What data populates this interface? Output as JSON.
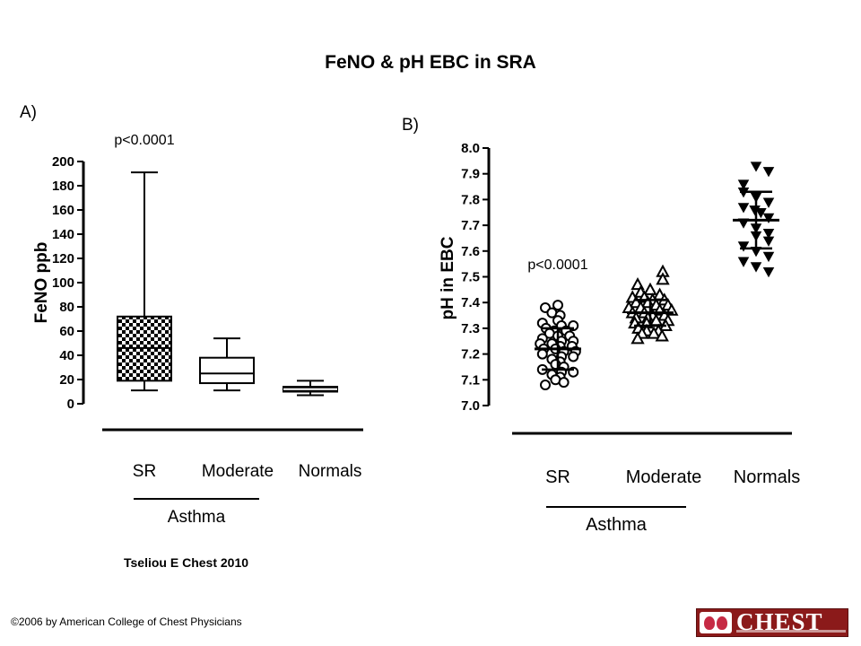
{
  "page": {
    "title": "FeNO & pH EBC in SRA",
    "citation": "Tseliou E Chest 2010",
    "copyright": "©2006 by American College of Chest Physicians",
    "logo_text": "CHEST"
  },
  "colors": {
    "logo_bg": "#8b1a1a",
    "ink": "#000000"
  },
  "chart_data": [
    {
      "panel": "A)",
      "type": "boxplot",
      "ylabel": "FeNO ppb",
      "ylim": [
        0,
        200
      ],
      "yticks": [
        "0",
        "20",
        "40",
        "60",
        "80",
        "100",
        "120",
        "140",
        "160",
        "180",
        "200"
      ],
      "categories": [
        "SR",
        "Moderate",
        "Normals"
      ],
      "group_label": "Asthma",
      "annotation": "p<0.0001",
      "boxes": [
        {
          "category": "SR",
          "min": 11,
          "q1": 19,
          "median": 46,
          "q3": 72,
          "max": 191,
          "fill": "checkered"
        },
        {
          "category": "Moderate",
          "min": 11,
          "q1": 17,
          "median": 25,
          "q3": 38,
          "max": 54,
          "fill": "none"
        },
        {
          "category": "Normals",
          "min": 7,
          "q1": 10,
          "median": 12,
          "q3": 14,
          "max": 19,
          "fill": "black"
        }
      ]
    },
    {
      "panel": "B)",
      "type": "scatter",
      "ylabel": "pH in EBC",
      "ylim": [
        7.0,
        8.0
      ],
      "yticks": [
        "7.0",
        "7.1",
        "7.2",
        "7.3",
        "7.4",
        "7.5",
        "7.6",
        "7.7",
        "7.8",
        "7.9",
        "8.0"
      ],
      "categories": [
        "SR",
        "Moderate",
        "Normals"
      ],
      "group_label": "Asthma",
      "annotation": "p<0.0001",
      "series": [
        {
          "category": "SR",
          "marker": "open-circle",
          "mean": 7.22,
          "sd_low": 7.14,
          "sd_high": 7.3,
          "values": [
            7.39,
            7.38,
            7.36,
            7.35,
            7.33,
            7.32,
            7.31,
            7.31,
            7.3,
            7.29,
            7.29,
            7.28,
            7.27,
            7.27,
            7.26,
            7.25,
            7.25,
            7.24,
            7.24,
            7.23,
            7.23,
            7.22,
            7.22,
            7.21,
            7.21,
            7.2,
            7.19,
            7.19,
            7.18,
            7.17,
            7.16,
            7.15,
            7.14,
            7.13,
            7.13,
            7.12,
            7.11,
            7.1,
            7.09,
            7.08
          ]
        },
        {
          "category": "Moderate",
          "marker": "open-triangle",
          "mean": 7.36,
          "sd_low": 7.31,
          "sd_high": 7.41,
          "values": [
            7.52,
            7.49,
            7.47,
            7.45,
            7.44,
            7.43,
            7.42,
            7.42,
            7.41,
            7.41,
            7.4,
            7.4,
            7.39,
            7.39,
            7.38,
            7.38,
            7.37,
            7.37,
            7.36,
            7.36,
            7.35,
            7.35,
            7.34,
            7.34,
            7.33,
            7.33,
            7.32,
            7.32,
            7.31,
            7.3,
            7.29,
            7.29,
            7.28,
            7.28,
            7.27,
            7.26
          ]
        },
        {
          "category": "Normals",
          "marker": "filled-inverted-triangle",
          "mean": 7.72,
          "sd_low": 7.61,
          "sd_high": 7.83,
          "values": [
            7.93,
            7.91,
            7.86,
            7.83,
            7.81,
            7.79,
            7.77,
            7.76,
            7.75,
            7.73,
            7.71,
            7.69,
            7.67,
            7.66,
            7.64,
            7.62,
            7.6,
            7.58,
            7.56,
            7.54,
            7.52
          ]
        }
      ]
    }
  ]
}
